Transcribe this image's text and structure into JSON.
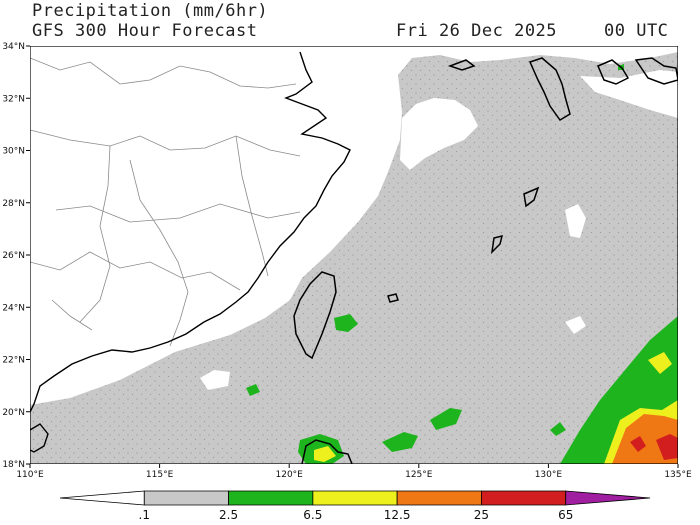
{
  "header": {
    "title": "Precipitation (mm/6hr)",
    "subtitle": "GFS 300 Hour Forecast",
    "date": "Fri 26 Dec 2025",
    "time": "00 UTC"
  },
  "axes": {
    "lat_labels": [
      "34°N",
      "32°N",
      "30°N",
      "28°N",
      "26°N",
      "24°N",
      "22°N",
      "20°N",
      "18°N"
    ],
    "lon_labels": [
      "110°E",
      "115°E",
      "120°E",
      "125°E",
      "130°E",
      "135°E"
    ]
  },
  "colorbar": {
    "labels": [
      ".1",
      "2.5",
      "6.5",
      "12.5",
      "25",
      "65"
    ],
    "colors": [
      "#ffffff",
      "#c8c8c8",
      "#1eb41e",
      "#eef01e",
      "#f07814",
      "#d21e1e",
      "#a01ea0"
    ]
  },
  "colors": {
    "land_line": "#8a8a8a",
    "coast": "#000000",
    "light_precip": "#c8c8c8"
  }
}
